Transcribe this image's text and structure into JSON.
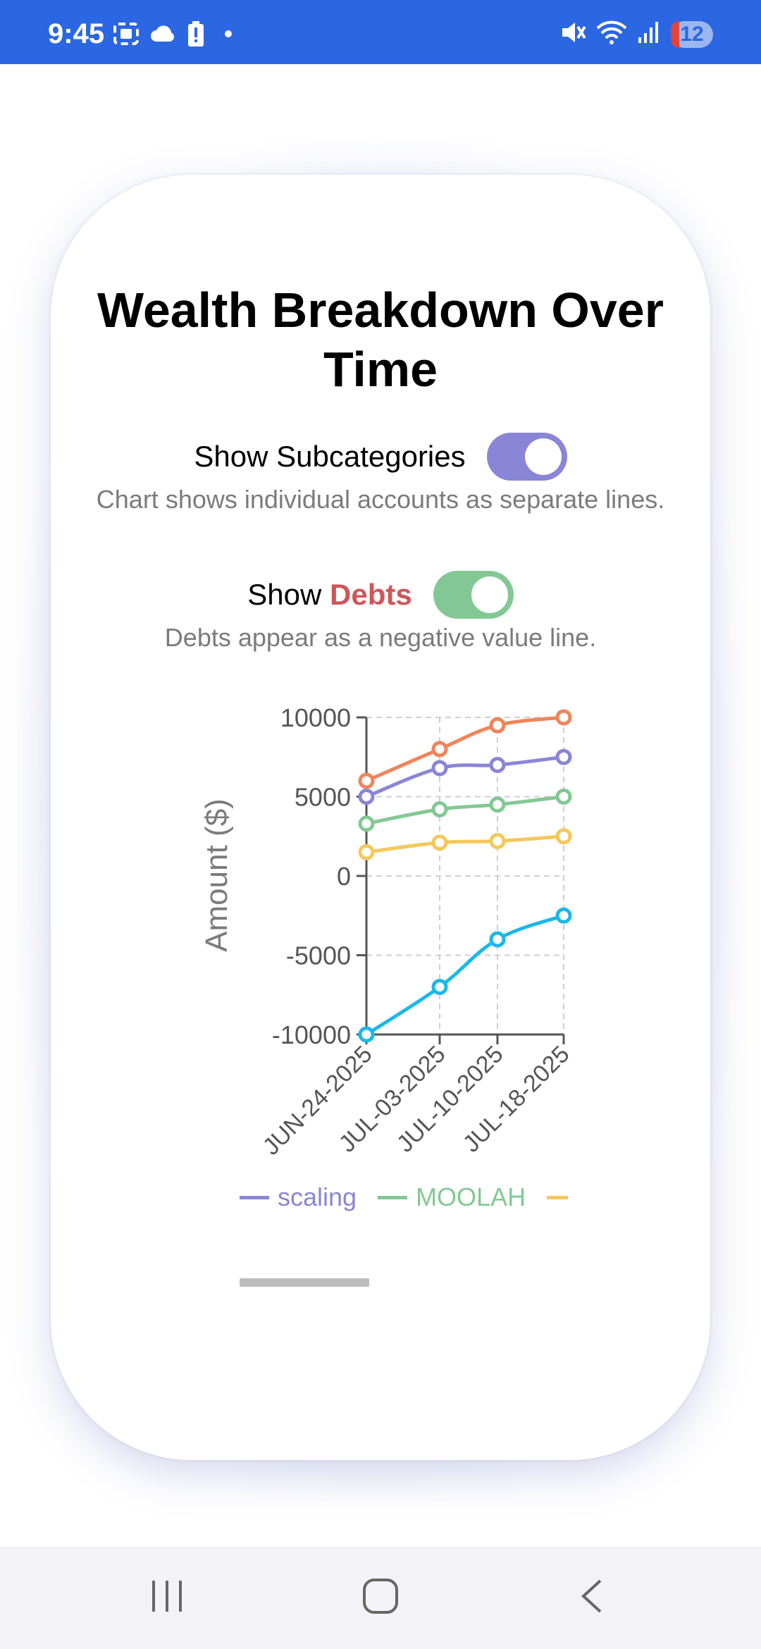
{
  "status_bar": {
    "time": "9:45",
    "notification_count": "12",
    "left_icons": [
      "screenshot-icon",
      "cloud-icon",
      "battery-alert-icon",
      "dot-icon"
    ],
    "right_icons": [
      "mute-icon",
      "wifi-icon",
      "signal-icon"
    ],
    "background": "#2b66e3"
  },
  "card": {
    "title": "Wealth Breakdown Over Time",
    "subcategories_toggle": {
      "label": "Show Subcategories",
      "on": true,
      "color": "#8a85d6",
      "description": "Chart shows individual accounts as separate lines."
    },
    "debts_toggle": {
      "label_prefix": "Show ",
      "label_highlight": "Debts",
      "on": true,
      "color": "#83c894",
      "description": "Debts appear as a negative value line."
    }
  },
  "chart_data": {
    "type": "line",
    "x": [
      "JUN-24-2025",
      "JUL-03-2025",
      "JUL-10-2025",
      "JUL-18-2025"
    ],
    "ylabel": "Amount ($)",
    "ylim": [
      -10000,
      10000
    ],
    "yticks": [
      "10000",
      "5000",
      "0",
      "-5000",
      "-10000"
    ],
    "grid": true,
    "series": [
      {
        "color": "#f0845a",
        "values": [
          6000,
          8000,
          9500,
          10000
        ]
      },
      {
        "name": "scaling",
        "color": "#8a85d6",
        "values": [
          5000,
          6800,
          7000,
          7500
        ]
      },
      {
        "name": "MOOLAH",
        "color": "#83c894",
        "values": [
          3300,
          4200,
          4500,
          5000
        ]
      },
      {
        "name": "",
        "color": "#f5c85a",
        "values": [
          1500,
          2100,
          2200,
          2500
        ]
      },
      {
        "color": "#1bb8e8",
        "values": [
          -10000,
          -7000,
          -4000,
          -2500
        ]
      }
    ],
    "legend": [
      {
        "name": "scaling",
        "color": "#8a85d6"
      },
      {
        "name": "MOOLAH",
        "color": "#83c894"
      },
      {
        "name": "",
        "color": "#f5c85a"
      }
    ]
  },
  "nav_bar": {
    "buttons": [
      "recent-apps",
      "home",
      "back"
    ]
  }
}
